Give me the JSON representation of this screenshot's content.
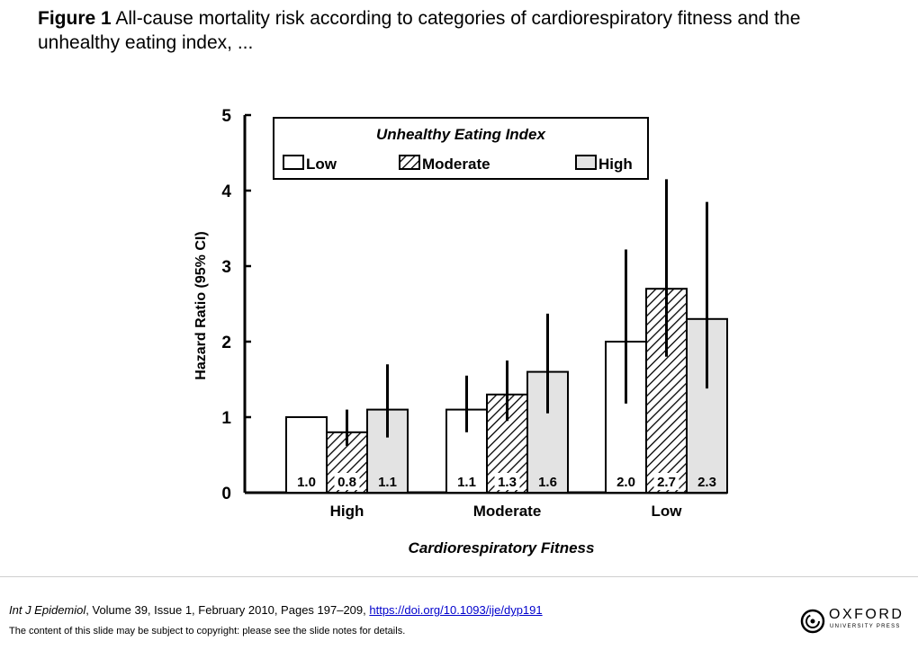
{
  "header": {
    "figure_label": "Figure 1",
    "caption": "All-cause mortality risk according to categories of cardiorespiratory fitness and the unhealthy eating index, ..."
  },
  "footer": {
    "journal": "Int J Epidemiol",
    "volume_text": ", Volume 39, Issue 1, February 2010, Pages 197–209, ",
    "doi": "https://doi.org/10.1093/ije/dyp191",
    "copyright": "The content of this slide may be subject to copyright: please see the slide notes for details."
  },
  "logo": {
    "word": "OXFORD",
    "sub": "UNIVERSITY PRESS"
  },
  "chart_data": {
    "type": "bar",
    "title": "",
    "xlabel": "Cardiorespiratory Fitness",
    "ylabel": "Hazard Ratio (95% CI)",
    "ylim": [
      0,
      5
    ],
    "yticks": [
      0,
      1,
      2,
      3,
      4,
      5
    ],
    "legend_title": "Unhealthy Eating Index",
    "legend_position": "top",
    "categories": [
      "High",
      "Moderate",
      "Low"
    ],
    "series": [
      {
        "name": "Low",
        "fill": "#ffffff",
        "pattern": "none",
        "values": [
          1.0,
          1.1,
          2.0
        ],
        "labels": [
          "1.0",
          "1.1",
          "2.0"
        ],
        "ci_low": [
          null,
          0.8,
          1.18
        ],
        "ci_high": [
          null,
          1.55,
          3.22
        ]
      },
      {
        "name": "Moderate",
        "fill": "#ffffff",
        "pattern": "hatch",
        "values": [
          0.8,
          1.3,
          2.7
        ],
        "labels": [
          "0.8",
          "1.3",
          "2.7"
        ],
        "ci_low": [
          0.62,
          0.95,
          1.8
        ],
        "ci_high": [
          1.1,
          1.75,
          4.15
        ]
      },
      {
        "name": "High",
        "fill": "#e3e3e3",
        "pattern": "none",
        "values": [
          1.1,
          1.6,
          2.3
        ],
        "labels": [
          "1.1",
          "1.6",
          "2.3"
        ],
        "ci_low": [
          0.73,
          1.05,
          1.38
        ],
        "ci_high": [
          1.7,
          2.37,
          3.85
        ]
      }
    ]
  }
}
